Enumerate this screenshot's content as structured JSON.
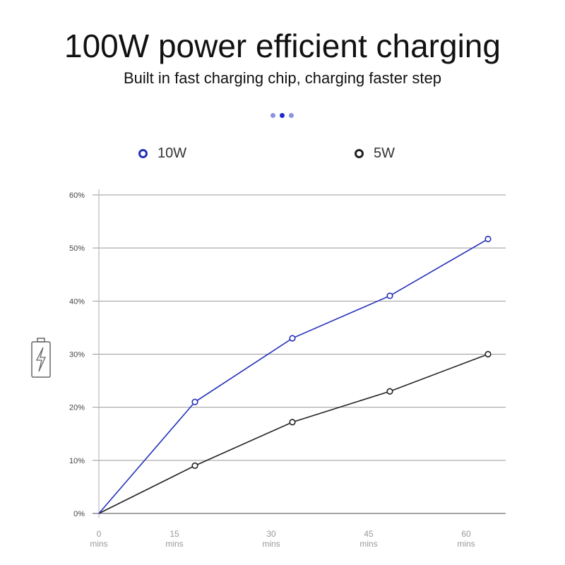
{
  "header": {
    "title": "100W power efficient charging",
    "subtitle": "Built in fast charging chip, charging faster step"
  },
  "carousel": {
    "count": 3,
    "active_index": 1
  },
  "battery_icon": "battery-charging-icon",
  "chart_data": {
    "type": "line",
    "title": "",
    "xlabel": "",
    "ylabel": "",
    "x_tick_labels": [
      [
        "0",
        "mins"
      ],
      [
        "15",
        "mins"
      ],
      [
        "30",
        "mins"
      ],
      [
        "45",
        "mins"
      ],
      [
        "60",
        "mins"
      ]
    ],
    "y_tick_labels": [
      "0%",
      "10%",
      "20%",
      "30%",
      "40%",
      "50%",
      "60%"
    ],
    "ylim": [
      0,
      60
    ],
    "grid": true,
    "legend_position": "top",
    "series": [
      {
        "name": "10W",
        "color": "#2430b8",
        "values": [
          0,
          21,
          33,
          41,
          51.7
        ]
      },
      {
        "name": "5W",
        "color": "#222222",
        "values": [
          0,
          9,
          17.2,
          23,
          30
        ]
      }
    ]
  }
}
